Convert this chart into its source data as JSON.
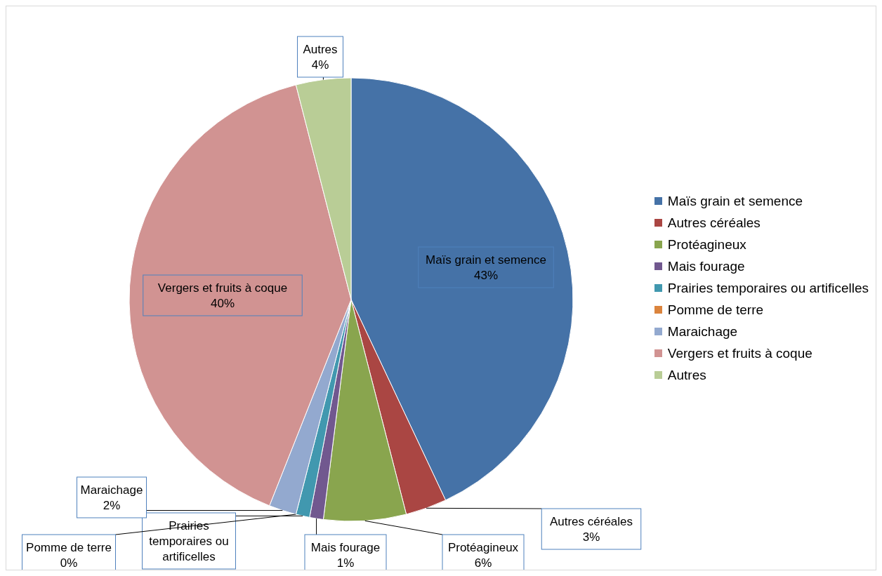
{
  "chart_data": {
    "type": "pie",
    "legend": "right",
    "categories": [
      "Maïs grain et semence",
      "Autres céréales",
      "Protéagineux",
      "Mais fourage",
      "Prairies temporaires ou artificelles",
      "Pomme de terre",
      "Maraichage",
      "Vergers et fruits à coque",
      "Autres"
    ],
    "values": [
      43,
      3,
      6,
      1,
      1,
      0,
      2,
      40,
      4
    ],
    "value_labels": [
      "43%",
      "3%",
      "6%",
      "1%",
      null,
      "0%",
      "2%",
      "40%",
      "4%"
    ],
    "colors": [
      "#4572a7",
      "#aa4643",
      "#89a54e",
      "#71588f",
      "#4198af",
      "#db843d",
      "#93a9cf",
      "#d19392",
      "#b9cd96"
    ]
  }
}
